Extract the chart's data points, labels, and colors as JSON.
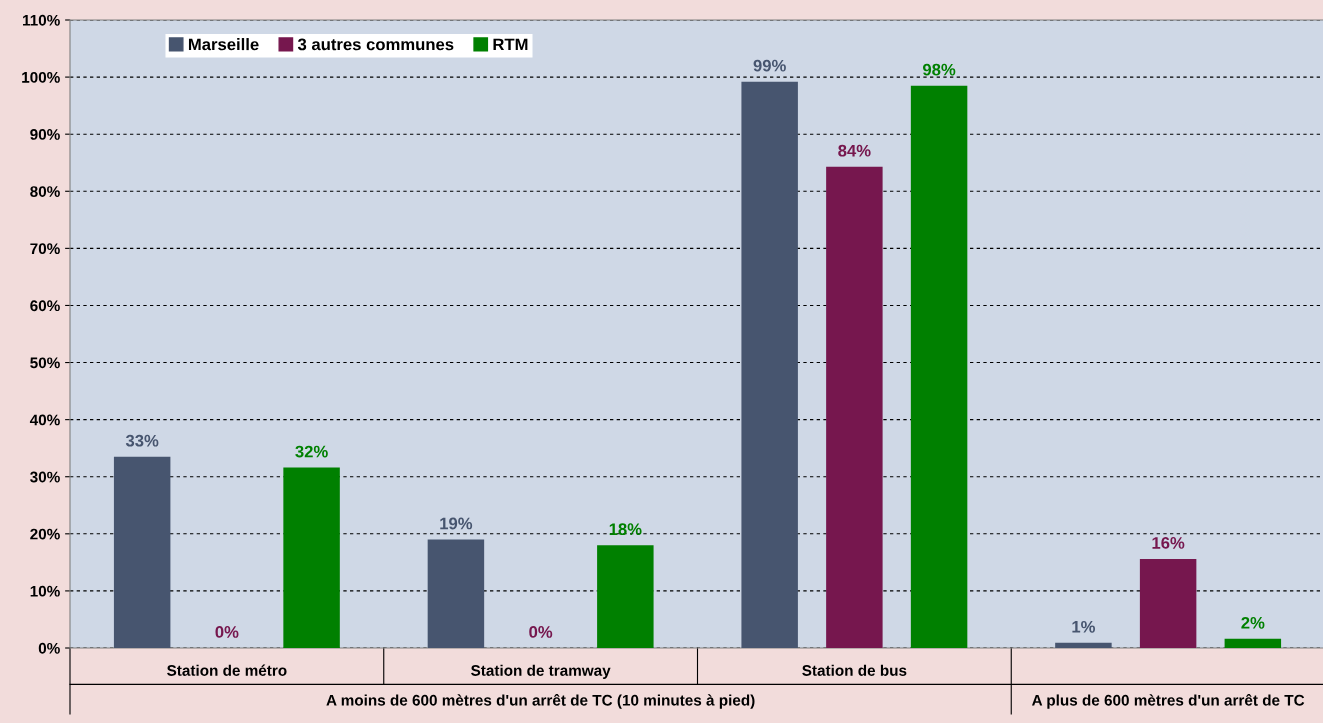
{
  "chart_data": {
    "type": "bar",
    "categories": [
      "Station de métro",
      "Station de tramway",
      "Station de bus",
      null
    ],
    "series": [
      {
        "name": "Marseille",
        "color": "#47556f",
        "values": [
          33.5,
          19,
          99.2,
          0.9
        ],
        "value_labels": [
          "33%",
          "19%",
          "99%",
          "1%"
        ]
      },
      {
        "name": "3 autres communes",
        "color": "#76174e",
        "values": [
          0,
          0,
          84.3,
          15.6
        ],
        "value_labels": [
          "0%",
          "0%",
          "84%",
          "16%"
        ]
      },
      {
        "name": "RTM",
        "color": "#008000",
        "values": [
          31.6,
          18,
          98.5,
          1.6
        ],
        "value_labels": [
          "32%",
          "18%",
          "98%",
          "2%"
        ]
      }
    ],
    "ylim": [
      0,
      110
    ],
    "yticks": [
      {
        "value": 0,
        "label": "0%"
      },
      {
        "value": 10,
        "label": "10%"
      },
      {
        "value": 20,
        "label": "20%"
      },
      {
        "value": 30,
        "label": "30%"
      },
      {
        "value": 40,
        "label": "40%"
      },
      {
        "value": 50,
        "label": "50%"
      },
      {
        "value": 60,
        "label": "60%"
      },
      {
        "value": 70,
        "label": "70%"
      },
      {
        "value": 80,
        "label": "80%"
      },
      {
        "value": 90,
        "label": "90%"
      },
      {
        "value": 100,
        "label": "100%"
      },
      {
        "value": 110,
        "label": "110%"
      }
    ],
    "grid": "y",
    "legend": "top left",
    "annotations": [
      "A moins de 600 mètres d'un arrêt de TC (10 minutes à pied)",
      "A plus de 600 mètres d'un arrêt de TC"
    ]
  }
}
